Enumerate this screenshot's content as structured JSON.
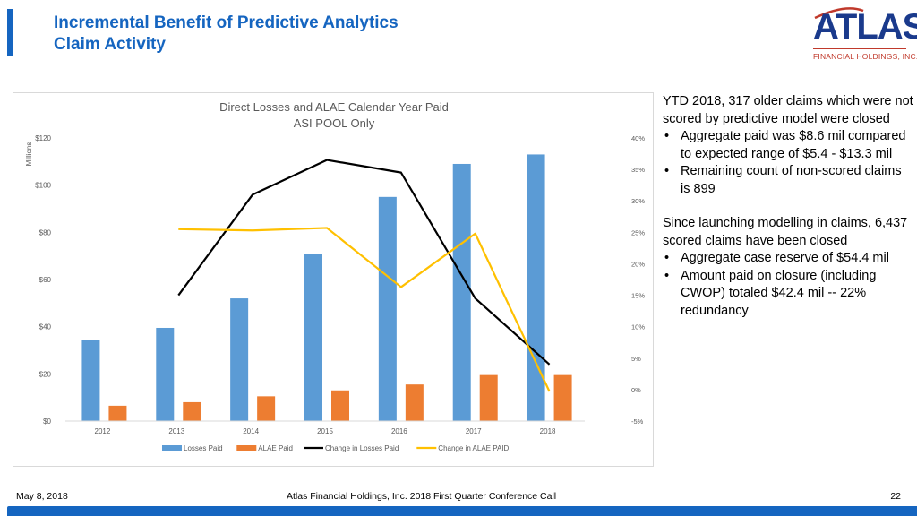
{
  "header": {
    "title_line1": "Incremental Benefit of Predictive Analytics",
    "title_line2": "Claim Activity",
    "accent_color": "#1565c0"
  },
  "logo": {
    "word": "ATLAS",
    "subtitle": "FINANCIAL HOLDINGS, INC."
  },
  "chart_data": {
    "type": "bar",
    "title": "Direct Losses and ALAE Calendar Year Paid",
    "subtitle": "ASI POOL Only",
    "y_axis_title": "Millions",
    "categories": [
      "2012",
      "2013",
      "2014",
      "2015",
      "2016",
      "2017",
      "2018"
    ],
    "ylim": [
      0,
      120
    ],
    "y_ticks": [
      0,
      20,
      40,
      60,
      80,
      100,
      120
    ],
    "y_tick_labels": [
      "$0",
      "$20",
      "$40",
      "$60",
      "$80",
      "$100",
      "$120"
    ],
    "y2lim": [
      -5,
      40
    ],
    "y2_ticks": [
      -5,
      0,
      5,
      10,
      15,
      20,
      25,
      30,
      35,
      40
    ],
    "y2_tick_labels": [
      "-5%",
      "0%",
      "5%",
      "10%",
      "15%",
      "20%",
      "25%",
      "30%",
      "35%",
      "40%"
    ],
    "series": [
      {
        "name": "Losses Paid",
        "kind": "bar",
        "color": "#5b9bd5",
        "values": [
          34.5,
          39.5,
          52,
          71,
          95,
          109,
          113
        ]
      },
      {
        "name": "ALAE Paid",
        "kind": "bar",
        "color": "#ed7d31",
        "values": [
          6.5,
          8,
          10.5,
          13,
          15.5,
          19.5,
          19.5
        ]
      },
      {
        "name": "Change in Losses Paid",
        "kind": "line",
        "axis": "secondary",
        "color": "#000000",
        "values": [
          null,
          15,
          31,
          36.5,
          34.5,
          14.5,
          4
        ]
      },
      {
        "name": "Change in ALAE PAID",
        "kind": "line",
        "axis": "secondary",
        "color": "#ffc000",
        "values": [
          null,
          25.5,
          25.3,
          25.7,
          16.3,
          24.8,
          -0.3
        ]
      }
    ]
  },
  "panel": {
    "intro": "YTD 2018, 317 older claims which were not scored by predictive model were closed",
    "bullets1": [
      "Aggregate paid was $8.6 mil compared to expected range of $5.4 - $13.3 mil",
      "Remaining count of non-scored claims is 899"
    ],
    "intro2": "Since launching modelling in claims, 6,437 scored claims have been closed",
    "bullets2": [
      "Aggregate case reserve of $54.4 mil",
      "Amount paid on closure (including CWOP) totaled $42.4 mil -- 22% redundancy"
    ]
  },
  "footer": {
    "date": "May 8, 2018",
    "center": "Atlas Financial Holdings, Inc. 2018 First Quarter Conference Call",
    "page": "22"
  }
}
